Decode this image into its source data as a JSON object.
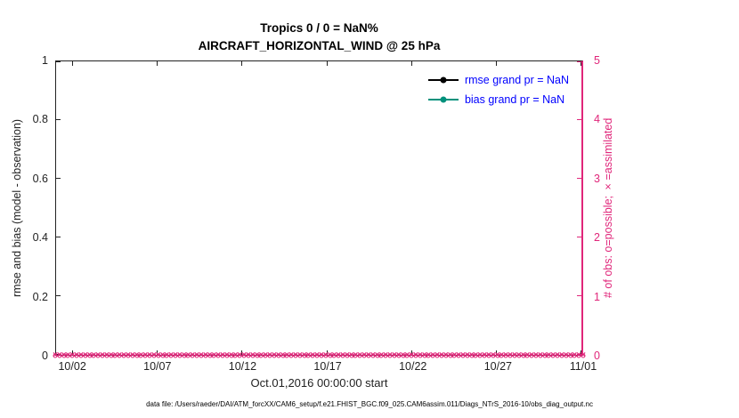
{
  "chart_data": {
    "type": "line",
    "title": "Tropics 0 / 0 = NaN%",
    "subtitle": "AIRCRAFT_HORIZONTAL_WIND @ 25 hPa",
    "xlabel": "Oct.01,2016 00:00:00 start",
    "grid": false,
    "x_axis": {
      "tick_labels": [
        "10/02",
        "10/07",
        "10/12",
        "10/17",
        "10/22",
        "10/27",
        "11/01"
      ],
      "tick_positions_days": [
        1,
        6,
        11,
        16,
        21,
        26,
        31
      ],
      "range_days": [
        0,
        31
      ],
      "start": "Oct.01,2016 00:00:00"
    },
    "left_axis": {
      "label": "rmse and bias (model - observation)",
      "ticks": [
        0,
        0.2,
        0.4,
        0.6,
        0.8,
        1
      ],
      "range": [
        0,
        1
      ],
      "color": "#222222"
    },
    "right_axis": {
      "label": "# of obs: o=possible; ×=assimilated",
      "ticks": [
        0,
        1,
        2,
        3,
        4,
        5
      ],
      "range": [
        0,
        5
      ],
      "color": "#e0267a"
    },
    "legend": {
      "position": "top-right-inside",
      "text_color": "#0000ff",
      "entries": [
        {
          "label": "rmse grand pr = NaN",
          "color": "#000000",
          "marker": "filled-circle"
        },
        {
          "label": "bias grand pr = NaN",
          "color": "#00917c",
          "marker": "filled-circle"
        }
      ]
    },
    "series": [
      {
        "name": "rmse",
        "axis": "left",
        "color": "#000000",
        "values": "NaN at every time step (no line drawn)",
        "plotted_points": 0
      },
      {
        "name": "bias",
        "axis": "left",
        "color": "#00917c",
        "values": "NaN at every time step (no line drawn)",
        "plotted_points": 0
      },
      {
        "name": "obs_possible",
        "axis": "right",
        "marker": "o",
        "color": "#e0267a",
        "constant_value": 0,
        "n_points": 124
      },
      {
        "name": "obs_assimilated",
        "axis": "right",
        "marker": "×",
        "color": "#e0267a",
        "constant_value": 0,
        "n_points": 124
      }
    ]
  },
  "footer": {
    "data_file": "data file: /Users/raeder/DAI/ATM_forcXX/CAM6_setup/f.e21.FHIST_BGC.f09_025.CAM6assim.011/Diags_NTrS_2016-10/obs_diag_output.nc"
  }
}
